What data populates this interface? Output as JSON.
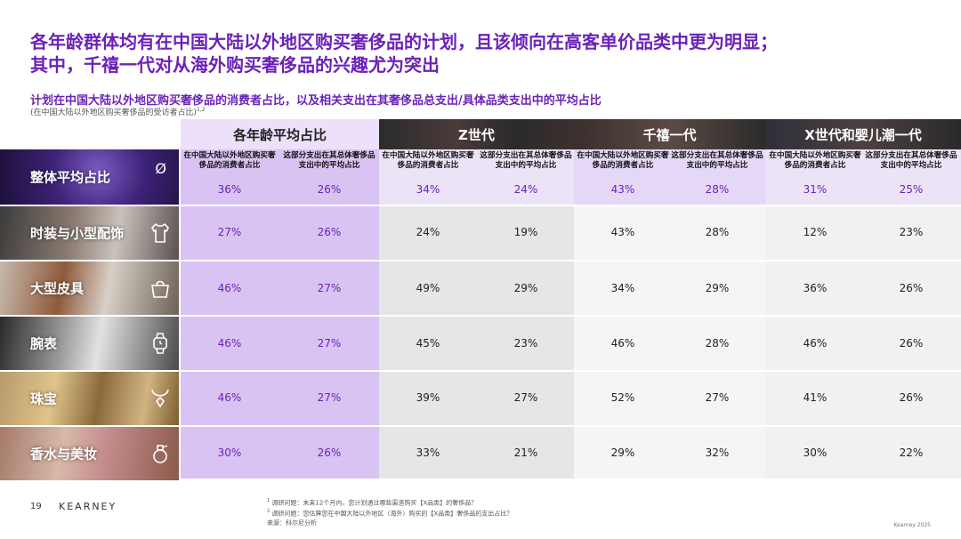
{
  "title_line1": "各年龄群体均有在中国大陆以外地区购买奢侈品的计划，且该倾向在高客单价品类中更为明显；",
  "title_line2": "其中，千禧一代对从海外购买奢侈品的兴趣尤为突出",
  "subtitle": "计划在中国大陆以外地区购买奢侈品的消费者占比，以及相关支出在其奢侈品总支出/具体品类支出中的平均占比",
  "subnote": "(在中国大陆以外地区购买奢侈品的受访者占比)",
  "subnote_sup": "1,2",
  "groups": [
    {
      "label": "各年龄平均占比"
    },
    {
      "label": "Z世代"
    },
    {
      "label": "千禧一代"
    },
    {
      "label": "X世代和婴儿潮一代"
    }
  ],
  "col_headers": {
    "share": "在中国大陆以外地区购买奢侈品的消费者占比",
    "spend": "这部分支出在其总体奢侈品支出中的平均占比"
  },
  "overall": {
    "label": "整体平均占比",
    "symbol": "Ø",
    "values": [
      "36%",
      "26%",
      "34%",
      "24%",
      "43%",
      "28%",
      "31%",
      "25%"
    ]
  },
  "rows": [
    {
      "label": "时装与小型配饰",
      "icon": "shirt-icon",
      "values": [
        "27%",
        "26%",
        "24%",
        "19%",
        "43%",
        "28%",
        "12%",
        "23%"
      ]
    },
    {
      "label": "大型皮具",
      "icon": "handbag-icon",
      "values": [
        "46%",
        "27%",
        "49%",
        "29%",
        "34%",
        "29%",
        "36%",
        "26%"
      ]
    },
    {
      "label": "腕表",
      "icon": "watch-icon",
      "values": [
        "46%",
        "27%",
        "45%",
        "23%",
        "46%",
        "28%",
        "46%",
        "26%"
      ]
    },
    {
      "label": "珠宝",
      "icon": "necklace-icon",
      "values": [
        "46%",
        "27%",
        "39%",
        "27%",
        "52%",
        "27%",
        "41%",
        "26%"
      ]
    },
    {
      "label": "香水与美妆",
      "icon": "perfume-icon",
      "values": [
        "30%",
        "26%",
        "33%",
        "21%",
        "29%",
        "32%",
        "30%",
        "22%"
      ]
    }
  ],
  "footer": {
    "page_number": "19",
    "brand": "KEARNEY",
    "note1": "调研问题：未来12个月内，您计划通过哪些渠道购买【X品类】的奢侈品？",
    "note2": "调研问题：您估算您在中国大陆以外地区（海外）购买的【X品类】奢侈品的支出占比？",
    "source": "来源：科尔尼分析",
    "copyright": "Kearney 2025"
  },
  "colors": {
    "accent": "#6b22b8",
    "avg_band": "#d9c3f2",
    "avg_header": "#ece0fa"
  }
}
